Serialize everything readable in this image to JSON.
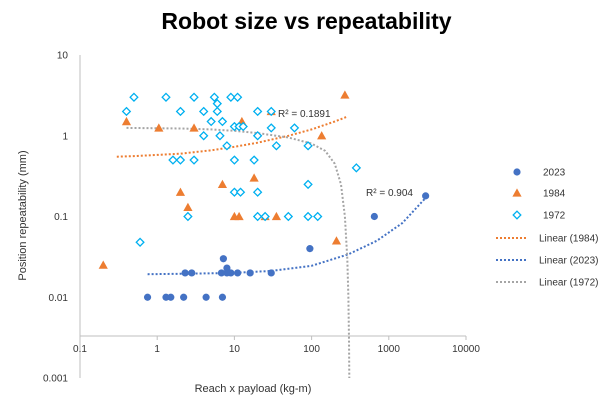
{
  "chart_data": {
    "type": "scatter",
    "title": "Robot size vs repeatability",
    "xlabel": "Reach x payload (kg-m)",
    "ylabel": "Position repeatability (mm)",
    "x_scale": "log",
    "y_scale": "log",
    "xlim": [
      0.1,
      10000
    ],
    "ylim": [
      0.001,
      10
    ],
    "x_ticks": [
      "0.1",
      "1",
      "10",
      "100",
      "1000",
      "10000"
    ],
    "y_ticks": [
      "0.001",
      "0.01",
      "0.1",
      "1",
      "10"
    ],
    "grid": false,
    "legend_position": "right",
    "series": [
      {
        "name": "2023",
        "marker": "circle",
        "color": "#4472C4",
        "points": [
          [
            0.75,
            0.01
          ],
          [
            1.3,
            0.01
          ],
          [
            1.5,
            0.01
          ],
          [
            2.2,
            0.01
          ],
          [
            4.3,
            0.01
          ],
          [
            7.0,
            0.01
          ],
          [
            2.3,
            0.02
          ],
          [
            2.8,
            0.02
          ],
          [
            6.8,
            0.02
          ],
          [
            8.0,
            0.02
          ],
          [
            9.0,
            0.02
          ],
          [
            11.0,
            0.02
          ],
          [
            16.0,
            0.02
          ],
          [
            30.0,
            0.02
          ],
          [
            7.2,
            0.03
          ],
          [
            8.0,
            0.023
          ],
          [
            95.0,
            0.04
          ],
          [
            650.0,
            0.1
          ],
          [
            3000.0,
            0.18
          ]
        ]
      },
      {
        "name": "1984",
        "marker": "triangle",
        "color": "#ED7D31",
        "points": [
          [
            0.2,
            0.025
          ],
          [
            0.4,
            1.5
          ],
          [
            1.05,
            1.25
          ],
          [
            2.0,
            0.2
          ],
          [
            2.5,
            0.13
          ],
          [
            3.0,
            1.25
          ],
          [
            7.0,
            0.25
          ],
          [
            10.0,
            0.1
          ],
          [
            11.5,
            0.1
          ],
          [
            12.5,
            1.5
          ],
          [
            18.0,
            0.3
          ],
          [
            25.0,
            0.1
          ],
          [
            35.0,
            0.1
          ],
          [
            135.0,
            1.0
          ],
          [
            210.0,
            0.05
          ],
          [
            270.0,
            3.2
          ],
          [
            30.0,
            2.0
          ]
        ]
      },
      {
        "name": "1972",
        "marker": "diamond",
        "color": "#00B0F0",
        "points": [
          [
            0.4,
            2.0
          ],
          [
            0.5,
            3.0
          ],
          [
            1.3,
            3.0
          ],
          [
            2.0,
            2.0
          ],
          [
            3.0,
            3.0
          ],
          [
            4.0,
            2.0
          ],
          [
            5.5,
            3.0
          ],
          [
            6.0,
            2.0
          ],
          [
            9.0,
            3.0
          ],
          [
            11.0,
            3.0
          ],
          [
            20.0,
            2.0
          ],
          [
            30.0,
            2.0
          ],
          [
            6.0,
            2.5
          ],
          [
            5.0,
            1.5
          ],
          [
            7.0,
            1.5
          ],
          [
            10.0,
            1.3
          ],
          [
            11.5,
            1.3
          ],
          [
            13.0,
            1.3
          ],
          [
            4.0,
            1.0
          ],
          [
            6.5,
            1.0
          ],
          [
            8.0,
            0.75
          ],
          [
            20.0,
            1.0
          ],
          [
            30.0,
            1.25
          ],
          [
            60.0,
            1.25
          ],
          [
            1.6,
            0.5
          ],
          [
            2.0,
            0.5
          ],
          [
            3.0,
            0.5
          ],
          [
            10.0,
            0.5
          ],
          [
            18.0,
            0.5
          ],
          [
            35.0,
            0.75
          ],
          [
            90.0,
            0.75
          ],
          [
            380.0,
            0.4
          ],
          [
            10.0,
            0.2
          ],
          [
            12.0,
            0.2
          ],
          [
            20.0,
            0.2
          ],
          [
            90.0,
            0.25
          ],
          [
            2.5,
            0.1
          ],
          [
            20.0,
            0.1
          ],
          [
            25.0,
            0.1
          ],
          [
            50.0,
            0.1
          ],
          [
            90.0,
            0.1
          ],
          [
            120.0,
            0.1
          ],
          [
            0.6,
            0.048
          ]
        ]
      }
    ],
    "trendlines": [
      {
        "name": "Linear (1984)",
        "color": "#ED7D31",
        "r_squared_label": "R² = 0.1891",
        "points": [
          [
            0.3,
            0.55
          ],
          [
            0.5,
            0.56
          ],
          [
            1.0,
            0.58
          ],
          [
            2.0,
            0.6
          ],
          [
            5.0,
            0.66
          ],
          [
            10.0,
            0.73
          ],
          [
            20.0,
            0.82
          ],
          [
            50.0,
            1.0
          ],
          [
            100.0,
            1.2
          ],
          [
            200.0,
            1.5
          ],
          [
            280.0,
            1.7
          ]
        ]
      },
      {
        "name": "Linear (2023)",
        "color": "#4472C4",
        "r_squared_label": "R² = 0.904",
        "points": [
          [
            0.75,
            0.0193
          ],
          [
            2.0,
            0.0195
          ],
          [
            5.0,
            0.0198
          ],
          [
            10.0,
            0.02
          ],
          [
            30.0,
            0.0212
          ],
          [
            100.0,
            0.0245
          ],
          [
            300.0,
            0.034
          ],
          [
            700.0,
            0.05
          ],
          [
            1500.0,
            0.083
          ],
          [
            3000.0,
            0.17
          ]
        ]
      },
      {
        "name": "Linear (1972)",
        "color": "#A5A5A5",
        "points": [
          [
            0.4,
            1.25
          ],
          [
            2.0,
            1.23
          ],
          [
            5.0,
            1.2
          ],
          [
            10.0,
            1.15
          ],
          [
            20.0,
            1.08
          ],
          [
            50.0,
            0.95
          ],
          [
            100.0,
            0.8
          ],
          [
            150.0,
            0.65
          ],
          [
            200.0,
            0.45
          ],
          [
            240.0,
            0.25
          ],
          [
            270.0,
            0.1
          ],
          [
            290.0,
            0.03
          ],
          [
            300.0,
            0.01
          ],
          [
            305.0,
            0.003
          ],
          [
            308.0,
            0.001
          ]
        ]
      }
    ]
  }
}
